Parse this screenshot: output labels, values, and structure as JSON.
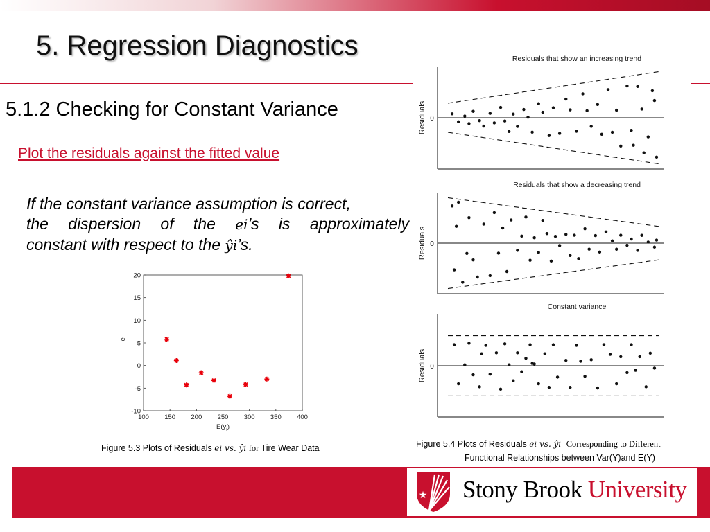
{
  "slide": {
    "title": "5. Regression Diagnostics",
    "subtitle": "5.1.2 Checking for Constant Variance",
    "link": "Plot the residuals against the fitted value",
    "para": {
      "line1": "If the constant variance assumption is correct,",
      "line2_pre": "the dispersion of the",
      "line2_var": "ei",
      "line2_post": "’s is approximately",
      "line3_pre": "constant with respect to the",
      "line3_var": "ŷi",
      "line3_post": "’s."
    },
    "caption_left": {
      "pre": "Figure 5.3 Plots of Residuals",
      "math": "ei vs. ŷi",
      "mid": "for",
      "post": "Tire Wear Data"
    },
    "caption_right": {
      "pre": "Figure 5.4 Plots of Residuals",
      "math": "ei vs. ŷi",
      "post": "Corresponding to Different",
      "line2": "Functional Relationships between Var(Y)and E(Y)"
    },
    "logo": {
      "word1": "Stony Brook",
      "word2": "University"
    },
    "colors": {
      "brand_red": "#c8102e",
      "marker_red": "#e8000a"
    }
  },
  "chart_data": [
    {
      "type": "scatter",
      "title": "",
      "xlabel": "E(yi)",
      "ylabel": "ei",
      "xlim": [
        100,
        400
      ],
      "ylim": [
        -10,
        20
      ],
      "xticks": [
        100,
        150,
        200,
        250,
        300,
        350,
        400
      ],
      "yticks": [
        -10,
        -5,
        0,
        5,
        10,
        15,
        20
      ],
      "grid": false,
      "points": [
        [
          144,
          5.8
        ],
        [
          162,
          1.1
        ],
        [
          181,
          -4.3
        ],
        [
          209,
          -1.6
        ],
        [
          233,
          -3.3
        ],
        [
          263,
          -6.8
        ],
        [
          293,
          -4.2
        ],
        [
          333,
          -3.0
        ],
        [
          374,
          19.8
        ]
      ]
    },
    {
      "type": "scatter",
      "title": "Residuals that show an increasing trend",
      "ylabel": "Residuals",
      "yticks": [
        0
      ],
      "grid": false,
      "zero_line": true,
      "bands": "widening",
      "points": [
        [
          0.02,
          0.26
        ],
        [
          0.05,
          -0.25
        ],
        [
          0.08,
          0.1
        ],
        [
          0.1,
          -0.33
        ],
        [
          0.12,
          0.35
        ],
        [
          0.15,
          -0.15
        ],
        [
          0.17,
          -0.42
        ],
        [
          0.2,
          0.21
        ],
        [
          0.22,
          -0.24
        ],
        [
          0.25,
          0.46
        ],
        [
          0.27,
          -0.14
        ],
        [
          0.29,
          -0.58
        ],
        [
          0.31,
          0.15
        ],
        [
          0.33,
          -0.35
        ],
        [
          0.36,
          0.32
        ],
        [
          0.38,
          0.02
        ],
        [
          0.4,
          -0.53
        ],
        [
          0.43,
          0.5
        ],
        [
          0.45,
          0.19
        ],
        [
          0.48,
          -0.6
        ],
        [
          0.5,
          0.33
        ],
        [
          0.53,
          -0.5
        ],
        [
          0.56,
          0.58
        ],
        [
          0.58,
          0.24
        ],
        [
          0.61,
          -0.4
        ],
        [
          0.64,
          0.69
        ],
        [
          0.66,
          0.2
        ],
        [
          0.68,
          -0.24
        ],
        [
          0.71,
          0.36
        ],
        [
          0.73,
          -0.44
        ],
        [
          0.76,
          0.73
        ],
        [
          0.78,
          -0.37
        ],
        [
          0.8,
          0.19
        ],
        [
          0.82,
          -0.7
        ],
        [
          0.85,
          0.77
        ],
        [
          0.87,
          -0.3
        ],
        [
          0.88,
          -0.65
        ],
        [
          0.9,
          0.73
        ],
        [
          0.92,
          0.2
        ],
        [
          0.93,
          -0.8
        ],
        [
          0.95,
          -0.43
        ],
        [
          0.97,
          0.6
        ],
        [
          0.98,
          0.38
        ],
        [
          0.99,
          -0.86
        ]
      ]
    },
    {
      "type": "scatter",
      "title": "Residuals that show a decreasing trend",
      "ylabel": "Residuals",
      "yticks": [
        0
      ],
      "grid": false,
      "zero_line": true,
      "bands": "narrowing",
      "points": [
        [
          0.02,
          0.83
        ],
        [
          0.03,
          -0.6
        ],
        [
          0.04,
          0.38
        ],
        [
          0.05,
          0.93
        ],
        [
          0.07,
          -0.9
        ],
        [
          0.09,
          -0.24
        ],
        [
          0.1,
          0.6
        ],
        [
          0.12,
          -0.4
        ],
        [
          0.14,
          -0.82
        ],
        [
          0.17,
          0.47
        ],
        [
          0.2,
          -0.82
        ],
        [
          0.22,
          0.78
        ],
        [
          0.24,
          -0.26
        ],
        [
          0.26,
          0.4
        ],
        [
          0.28,
          -0.76
        ],
        [
          0.3,
          0.63
        ],
        [
          0.33,
          -0.2
        ],
        [
          0.35,
          0.2
        ],
        [
          0.37,
          0.75
        ],
        [
          0.39,
          -0.5
        ],
        [
          0.41,
          0.16
        ],
        [
          0.43,
          -0.28
        ],
        [
          0.45,
          0.7
        ],
        [
          0.47,
          0.3
        ],
        [
          0.49,
          -0.57
        ],
        [
          0.51,
          0.22
        ],
        [
          0.53,
          -0.08
        ],
        [
          0.56,
          0.3
        ],
        [
          0.58,
          -0.43
        ],
        [
          0.6,
          0.28
        ],
        [
          0.62,
          -0.56
        ],
        [
          0.65,
          0.54
        ],
        [
          0.67,
          -0.23
        ],
        [
          0.7,
          0.3
        ],
        [
          0.72,
          -0.36
        ],
        [
          0.75,
          0.47
        ],
        [
          0.78,
          0.1
        ],
        [
          0.8,
          -0.27
        ],
        [
          0.82,
          0.36
        ],
        [
          0.85,
          -0.1
        ],
        [
          0.87,
          0.2
        ],
        [
          0.9,
          -0.37
        ],
        [
          0.92,
          0.41
        ],
        [
          0.95,
          0.06
        ],
        [
          0.98,
          -0.23
        ],
        [
          0.99,
          0.18
        ]
      ]
    },
    {
      "type": "scatter",
      "title": "Constant variance",
      "ylabel": "Residuals",
      "yticks": [
        0
      ],
      "grid": false,
      "zero_line": true,
      "bands": "constant",
      "points": [
        [
          0.03,
          0.7
        ],
        [
          0.05,
          -0.6
        ],
        [
          0.08,
          0.03
        ],
        [
          0.1,
          0.75
        ],
        [
          0.12,
          -0.3
        ],
        [
          0.15,
          -0.7
        ],
        [
          0.16,
          0.4
        ],
        [
          0.18,
          0.68
        ],
        [
          0.2,
          -0.28
        ],
        [
          0.23,
          0.43
        ],
        [
          0.25,
          -0.78
        ],
        [
          0.27,
          0.73
        ],
        [
          0.29,
          0.03
        ],
        [
          0.31,
          -0.5
        ],
        [
          0.33,
          0.43
        ],
        [
          0.35,
          -0.2
        ],
        [
          0.37,
          0.25
        ],
        [
          0.39,
          0.7
        ],
        [
          0.4,
          0.08
        ],
        [
          0.41,
          0.06
        ],
        [
          0.43,
          -0.6
        ],
        [
          0.46,
          0.4
        ],
        [
          0.48,
          -0.72
        ],
        [
          0.5,
          0.7
        ],
        [
          0.52,
          -0.38
        ],
        [
          0.56,
          0.18
        ],
        [
          0.58,
          -0.72
        ],
        [
          0.61,
          0.68
        ],
        [
          0.63,
          0.15
        ],
        [
          0.65,
          -0.35
        ],
        [
          0.68,
          0.2
        ],
        [
          0.71,
          -0.74
        ],
        [
          0.74,
          0.7
        ],
        [
          0.77,
          0.38
        ],
        [
          0.8,
          -0.6
        ],
        [
          0.82,
          0.3
        ],
        [
          0.85,
          -0.23
        ],
        [
          0.87,
          0.7
        ],
        [
          0.89,
          -0.15
        ],
        [
          0.91,
          0.3
        ],
        [
          0.94,
          -0.7
        ],
        [
          0.96,
          0.42
        ],
        [
          0.98,
          -0.08
        ]
      ]
    }
  ]
}
